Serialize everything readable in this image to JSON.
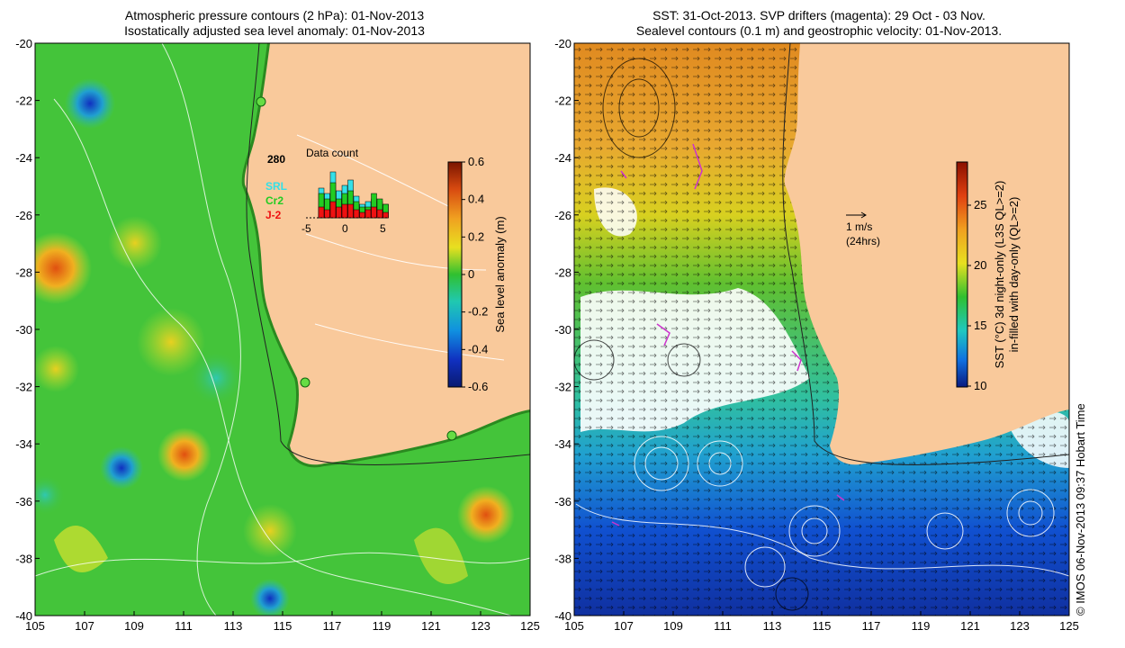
{
  "left_panel": {
    "title_line1": "Atmospheric pressure contours (2 hPa): 01-Nov-2013",
    "title_line2": "Isostatically adjusted sea level anomaly: 01-Nov-2013",
    "colorbar_label": "Sea level anomaly (m)",
    "colorbar_ticks": [
      "0.6",
      "0.4",
      "0.2",
      "0",
      "-0.2",
      "-0.4",
      "-0.6"
    ],
    "inset": {
      "title": "Data count",
      "max_label": "280",
      "legend": [
        {
          "name": "SRL",
          "color": "#33e0e8"
        },
        {
          "name": "Cr2",
          "color": "#22cc22"
        },
        {
          "name": "J-2",
          "color": "#ee1111"
        }
      ],
      "x_ticks": [
        "-5",
        "0",
        "5"
      ],
      "bars_srl": [
        0,
        0,
        0.55,
        0.45,
        0.85,
        0.5,
        0.6,
        0.7,
        0.4,
        0.25,
        0.3,
        0.35,
        0.3,
        0.25
      ],
      "bars_cr2": [
        0,
        0,
        0.45,
        0.35,
        0.65,
        0.35,
        0.45,
        0.5,
        0.3,
        0.2,
        0.2,
        0.45,
        0.35,
        0.25
      ],
      "bars_j2": [
        0,
        0,
        0.2,
        0.15,
        0.3,
        0.2,
        0.25,
        0.25,
        0.15,
        0.1,
        0.15,
        0.2,
        0.15,
        0.1
      ]
    }
  },
  "right_panel": {
    "title_line1": "SST: 31-Oct-2013. SVP drifters (magenta): 29 Oct - 03 Nov.",
    "title_line2": "Sealevel contours (0.1 m) and geostrophic velocity: 01-Nov-2013.",
    "colorbar_label_line1": "SST (°C) 3d night-only (L3S QL>=2)",
    "colorbar_label_line2": "in-filled with day-only (QL>=2)",
    "colorbar_ticks": [
      "25",
      "20",
      "15",
      "10"
    ],
    "velocity_scale": {
      "label": "1 m/s",
      "sublabel": "(24hrs)"
    }
  },
  "axes": {
    "x_ticks": [
      "105",
      "107",
      "109",
      "111",
      "113",
      "115",
      "117",
      "119",
      "121",
      "123",
      "125"
    ],
    "y_ticks": [
      "-20",
      "-22",
      "-24",
      "-26",
      "-28",
      "-30",
      "-32",
      "-34",
      "-36",
      "-38",
      "-40"
    ]
  },
  "credit": "© IMOS 06-Nov-2013 09:37 Hobart Time",
  "colors": {
    "land": "#f9c99b",
    "sla_base": "#44c43a",
    "sst_warm": "#e8a020",
    "sst_cold": "#1040c0"
  }
}
